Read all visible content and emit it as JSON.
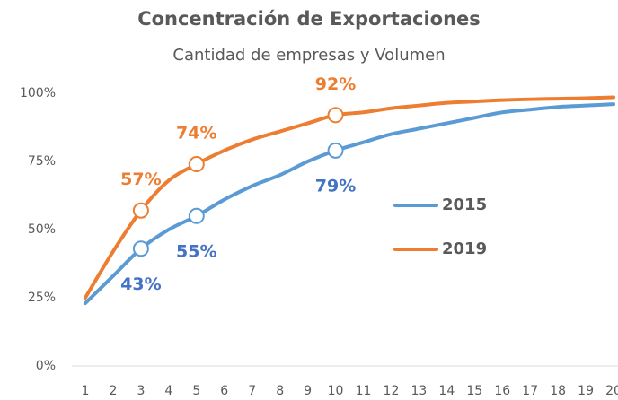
{
  "chart_data": {
    "type": "line",
    "title": "Concentración de Exportaciones",
    "subtitle": "Cantidad de empresas y Volumen",
    "categories": [
      "1",
      "2",
      "3",
      "4",
      "5",
      "6",
      "7",
      "8",
      "9",
      "10",
      "11",
      "12",
      "13",
      "14",
      "15",
      "16",
      "17",
      "18",
      "19",
      "20"
    ],
    "series": [
      {
        "name": "2015",
        "color": "#5b9bd5",
        "label_color": "#4472c4",
        "values": [
          23,
          33,
          43,
          50,
          55,
          61,
          66,
          70,
          75,
          79,
          82,
          85,
          87,
          89,
          91,
          93,
          94,
          95,
          95.5,
          96
        ],
        "value_labels": [
          null,
          null,
          "43%",
          null,
          "55%",
          null,
          null,
          null,
          null,
          "79%",
          null,
          null,
          null,
          null,
          null,
          null,
          null,
          null,
          null,
          null
        ]
      },
      {
        "name": "2019",
        "color": "#ed7d31",
        "label_color": "#ed7d31",
        "values": [
          25,
          42,
          57,
          68,
          74,
          79,
          83,
          86,
          89,
          92,
          93,
          94.5,
          95.5,
          96.5,
          97,
          97.5,
          97.8,
          98,
          98.2,
          98.5
        ],
        "value_labels": [
          null,
          null,
          "57%",
          null,
          "74%",
          null,
          null,
          null,
          null,
          "92%",
          null,
          null,
          null,
          null,
          null,
          null,
          null,
          null,
          null,
          null
        ]
      }
    ],
    "ylim": [
      0,
      100
    ],
    "yticks": [
      {
        "value": 0,
        "label": "0%"
      },
      {
        "value": 25,
        "label": "25%"
      },
      {
        "value": 50,
        "label": "50%"
      },
      {
        "value": 75,
        "label": "75%"
      },
      {
        "value": 100,
        "label": "100%"
      }
    ],
    "grid": false
  }
}
